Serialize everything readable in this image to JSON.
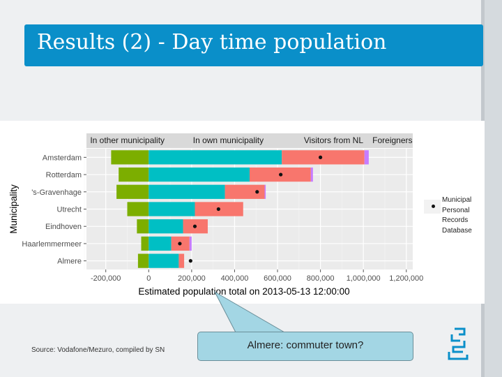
{
  "slide": {
    "title": "Results (2) - Day time population",
    "source": "Source: Vodafone/Mezuro, compiled by SN",
    "callout": "Almere: commuter town?"
  },
  "legend": {
    "label": "Municipal Personal Records Database"
  },
  "logo": {
    "name": "cbs-logo",
    "color": "#0a8fc9"
  },
  "colors": {
    "title_bg": "#0a8fc9",
    "other_municipality": "#7cae00",
    "own_municipality": "#00bfc4",
    "visitors_nl": "#f8766d",
    "foreigners": "#c77cff",
    "panel_bg": "#ebebeb",
    "strip_bg": "#d9d9d9"
  },
  "chart_data": {
    "type": "bar",
    "orientation": "horizontal",
    "stacked": true,
    "facets": [
      "In other municipality",
      "In own municipality",
      "Visitors from NL",
      "Foreigners"
    ],
    "ylabel": "Municipality",
    "xlabel": "Estimated population total on 2013-05-13 12:00:00",
    "xlim": [
      -290000,
      1230000
    ],
    "xticks": [
      -200000,
      0,
      200000,
      400000,
      600000,
      800000,
      1000000,
      1200000
    ],
    "xtick_labels": [
      "-200,000",
      "0",
      "200,000",
      "400,000",
      "600,000",
      "800,000",
      "1,000,000",
      "1,200,000"
    ],
    "categories": [
      "Amsterdam",
      "Rotterdam",
      "'s-Gravenhage",
      "Utrecht",
      "Eindhoven",
      "Haarlemmermeer",
      "Almere"
    ],
    "series": [
      {
        "name": "In other municipality",
        "values": [
          -175000,
          -140000,
          -150000,
          -100000,
          -55000,
          -35000,
          -50000
        ]
      },
      {
        "name": "In own municipality",
        "values": [
          620000,
          470000,
          355000,
          215000,
          160000,
          105000,
          140000
        ]
      },
      {
        "name": "Visitors from NL",
        "values": [
          385000,
          285000,
          185000,
          225000,
          115000,
          85000,
          25000
        ]
      },
      {
        "name": "Foreigners",
        "values": [
          20000,
          10000,
          5000,
          0,
          0,
          10000,
          0
        ]
      }
    ],
    "mpr_points": {
      "name": "Municipal Personal Records Database",
      "values": [
        800000,
        615000,
        505000,
        325000,
        215000,
        145000,
        195000
      ]
    }
  }
}
